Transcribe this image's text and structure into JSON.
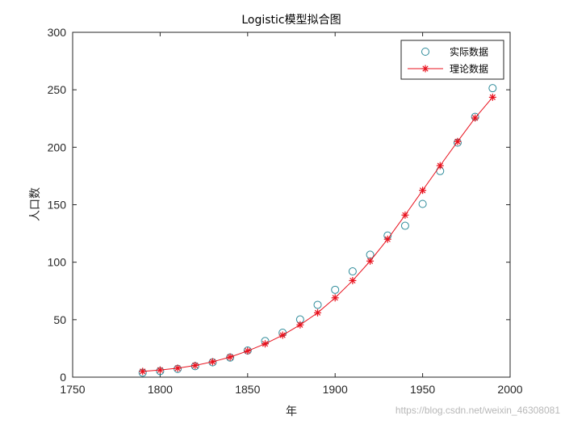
{
  "chart_data": {
    "type": "scatter",
    "title": "Logistic模型拟合图",
    "xlabel": "年",
    "ylabel": "人口数",
    "xlim": [
      1750,
      2000
    ],
    "ylim": [
      0,
      300
    ],
    "xticks": [
      1750,
      1800,
      1850,
      1900,
      1950,
      2000
    ],
    "yticks": [
      0,
      50,
      100,
      150,
      200,
      250,
      300
    ],
    "grid": false,
    "legend_position": "top-right",
    "x": [
      1790,
      1800,
      1810,
      1820,
      1830,
      1840,
      1850,
      1860,
      1870,
      1880,
      1890,
      1900,
      1910,
      1920,
      1930,
      1940,
      1950,
      1960,
      1970,
      1980,
      1990
    ],
    "series": [
      {
        "name": "实际数据",
        "marker": "circle",
        "line": false,
        "color": "#2e8b9a",
        "values": [
          3.9,
          5.3,
          7.2,
          9.6,
          12.9,
          17.1,
          23.2,
          31.4,
          38.6,
          50.2,
          62.9,
          76.0,
          92.0,
          106.5,
          123.2,
          131.7,
          150.7,
          179.3,
          204.0,
          226.5,
          251.4
        ]
      },
      {
        "name": "理论数据",
        "marker": "asterisk",
        "line": true,
        "color": "#e8101c",
        "values": [
          5.0,
          6.2,
          7.8,
          10.2,
          13.4,
          17.5,
          22.8,
          29.0,
          36.5,
          45.5,
          56.0,
          69.0,
          84.0,
          101.0,
          120.0,
          141.0,
          162.5,
          184.0,
          205.0,
          225.5,
          243.5
        ]
      }
    ]
  },
  "watermark": "https://blog.csdn.net/weixin_46308081"
}
